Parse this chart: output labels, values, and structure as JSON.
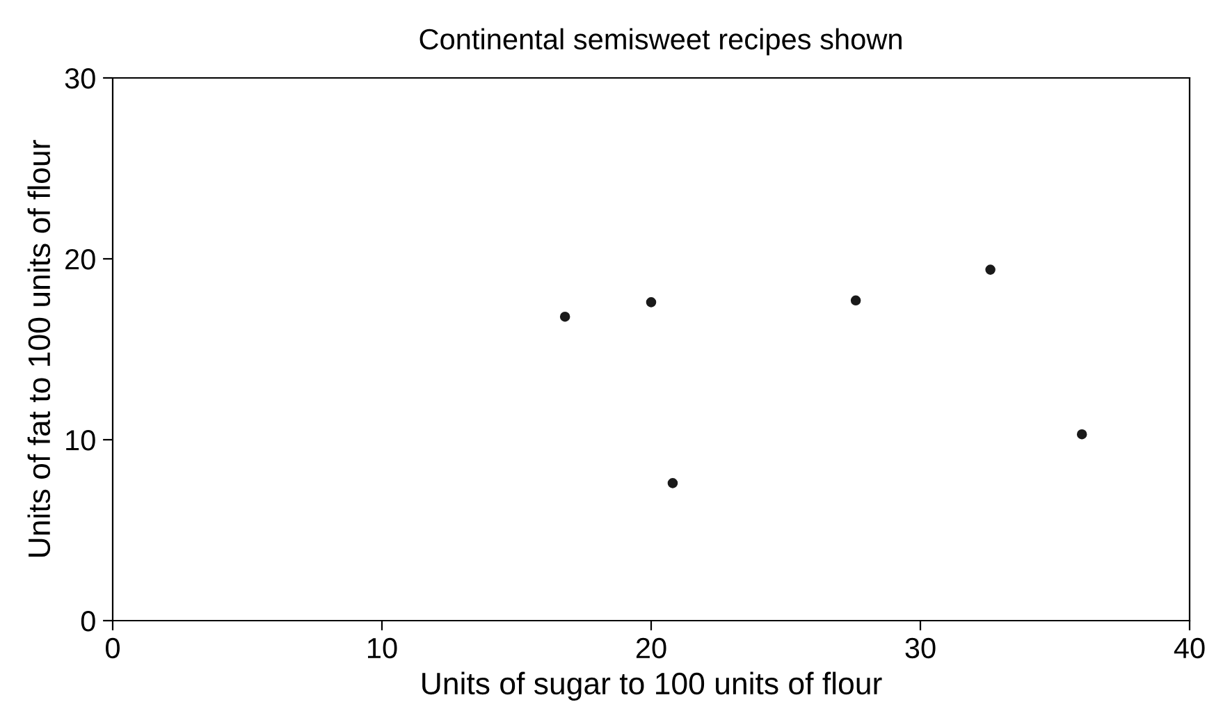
{
  "chart_data": {
    "type": "scatter",
    "title": "Continental semisweet recipes shown",
    "xlabel": "Units of sugar to 100 units of flour",
    "ylabel": "Units of fat to 100 units of flour",
    "x": [
      16.8,
      20.0,
      20.8,
      27.6,
      32.6,
      36.0
    ],
    "values": [
      16.8,
      17.6,
      7.6,
      17.7,
      19.4,
      10.3
    ],
    "color": "#1a1a1a",
    "marker": "circle",
    "xlim": [
      0,
      40
    ],
    "xticks": [
      0,
      10,
      20,
      30,
      40
    ],
    "ylim": [
      0,
      30
    ],
    "yticks": [
      0,
      10,
      20,
      30
    ],
    "grid": false
  }
}
